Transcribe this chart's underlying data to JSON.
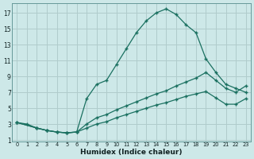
{
  "bg_color": "#cde8e8",
  "grid_color": "#b0cccc",
  "line_color": "#1a7060",
  "xlabel": "Humidex (Indice chaleur)",
  "xlim": [
    -0.5,
    23.5
  ],
  "ylim": [
    0.8,
    18.2
  ],
  "xticks": [
    0,
    1,
    2,
    3,
    4,
    5,
    6,
    7,
    8,
    9,
    10,
    11,
    12,
    13,
    14,
    15,
    16,
    17,
    18,
    19,
    20,
    21,
    22,
    23
  ],
  "yticks": [
    1,
    3,
    5,
    7,
    9,
    11,
    13,
    15,
    17
  ],
  "line1_x": [
    0,
    1,
    2,
    3,
    4,
    5,
    6,
    7,
    8,
    9,
    10,
    11,
    12,
    13,
    14,
    15,
    16,
    17,
    18,
    19,
    20,
    21,
    22,
    23
  ],
  "line1_y": [
    3.2,
    3.0,
    2.5,
    2.2,
    2.0,
    1.9,
    2.0,
    6.2,
    8.0,
    8.5,
    10.5,
    12.5,
    14.5,
    16.0,
    17.0,
    17.5,
    16.8,
    15.5,
    14.5,
    11.2,
    9.5,
    8.0,
    7.5,
    7.0
  ],
  "line2_x": [
    0,
    2,
    3,
    4,
    5,
    6,
    7,
    8,
    9,
    10,
    11,
    12,
    13,
    14,
    15,
    16,
    17,
    18,
    19,
    20,
    21,
    22,
    23
  ],
  "line2_y": [
    3.2,
    2.5,
    2.2,
    2.0,
    1.9,
    2.0,
    3.0,
    3.8,
    4.2,
    4.8,
    5.3,
    5.8,
    6.3,
    6.8,
    7.2,
    7.8,
    8.3,
    8.8,
    9.5,
    8.5,
    7.5,
    7.0,
    7.8
  ],
  "line3_x": [
    0,
    2,
    3,
    4,
    5,
    6,
    7,
    8,
    9,
    10,
    11,
    12,
    13,
    14,
    15,
    16,
    17,
    18,
    19,
    20,
    21,
    22,
    23
  ],
  "line3_y": [
    3.2,
    2.5,
    2.2,
    2.0,
    1.9,
    2.0,
    2.5,
    3.0,
    3.3,
    3.8,
    4.2,
    4.6,
    5.0,
    5.4,
    5.7,
    6.1,
    6.5,
    6.8,
    7.1,
    6.3,
    5.5,
    5.5,
    6.2
  ]
}
